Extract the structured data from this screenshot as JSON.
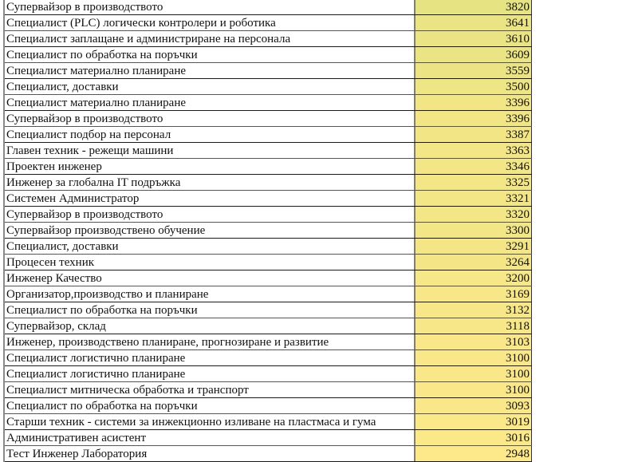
{
  "color_scale": {
    "max_color": "#e5e382",
    "min_color": "#fde88a"
  },
  "rows": [
    {
      "title": "Супервайзор в производството",
      "value": 3820
    },
    {
      "title": "Специалист (PLC) логически контролери и роботика",
      "value": 3641
    },
    {
      "title": "Специалист заплащане и администриране на персонала",
      "value": 3610
    },
    {
      "title": "Специалист по обработка на поръчки",
      "value": 3609
    },
    {
      "title": "Специалист материално планиране",
      "value": 3559
    },
    {
      "title": "Специалист, доставки",
      "value": 3500
    },
    {
      "title": "Специалист материално планиране",
      "value": 3396
    },
    {
      "title": "Супервайзор в производството",
      "value": 3396
    },
    {
      "title": "Специалист подбор на персонал",
      "value": 3387
    },
    {
      "title": "Главен техник - режещи машини",
      "value": 3363
    },
    {
      "title": "Проектен инженер",
      "value": 3346
    },
    {
      "title": "Инженер за глобална IT подръжка",
      "value": 3325
    },
    {
      "title": "Системен Администратор",
      "value": 3321
    },
    {
      "title": "Супервайзор в производството",
      "value": 3320
    },
    {
      "title": "Супервайзор производствено обучение",
      "value": 3300
    },
    {
      "title": "Специалист, доставки",
      "value": 3291
    },
    {
      "title": "Процесен техник",
      "value": 3264
    },
    {
      "title": "Инженер Качество",
      "value": 3200
    },
    {
      "title": "Организатор,производство и планиране",
      "value": 3169
    },
    {
      "title": "Специалист по обработка на поръчки",
      "value": 3132
    },
    {
      "title": "Супервайзор, склад",
      "value": 3118
    },
    {
      "title": "Инженер, производствено планиране, прогнозиране и развитие",
      "value": 3103
    },
    {
      "title": "Специалист логистично планиране",
      "value": 3100
    },
    {
      "title": "Специалист логистично планиране",
      "value": 3100
    },
    {
      "title": "Специалист митническа обработка и транспорт",
      "value": 3100
    },
    {
      "title": "Специалист по обработка на поръчки",
      "value": 3093
    },
    {
      "title": "Старши техник - системи за инжекционно изливане на пластмаса и гума",
      "value": 3019
    },
    {
      "title": "Административен асистент",
      "value": 3016
    },
    {
      "title": "Тест Инженер  Лаборатория",
      "value": 2948
    }
  ]
}
